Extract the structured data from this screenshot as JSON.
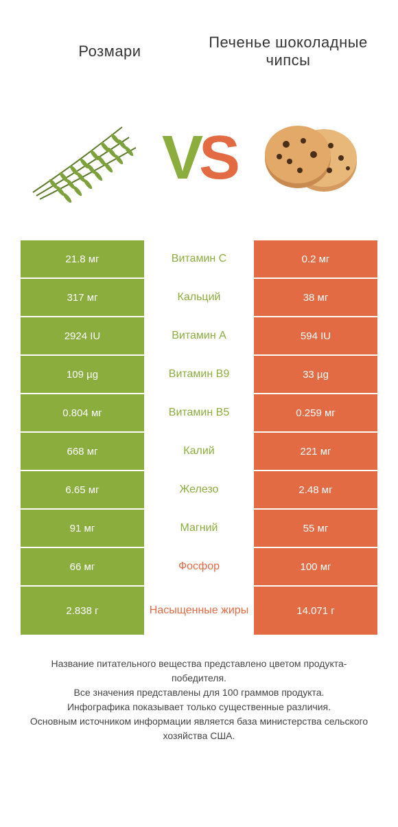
{
  "left_title": "Розмари",
  "right_title": "Печенье шоколадные чипсы",
  "vs": {
    "v": "V",
    "s": "S"
  },
  "colors": {
    "left_cell": "#8aad3e",
    "right_cell": "#e26b44",
    "left_text": "#8aad3e",
    "right_text": "#e26b44",
    "mid_bg": "#ffffff"
  },
  "rows": [
    {
      "left": "21.8 мг",
      "mid": "Витамин C",
      "right": "0.2 мг",
      "winner": "left",
      "tall": false
    },
    {
      "left": "317 мг",
      "mid": "Кальций",
      "right": "38 мг",
      "winner": "left",
      "tall": false
    },
    {
      "left": "2924 IU",
      "mid": "Витамин A",
      "right": "594 IU",
      "winner": "left",
      "tall": false
    },
    {
      "left": "109 µg",
      "mid": "Витамин B9",
      "right": "33 µg",
      "winner": "left",
      "tall": false
    },
    {
      "left": "0.804 мг",
      "mid": "Витамин B5",
      "right": "0.259 мг",
      "winner": "left",
      "tall": false
    },
    {
      "left": "668 мг",
      "mid": "Калий",
      "right": "221 мг",
      "winner": "left",
      "tall": false
    },
    {
      "left": "6.65 мг",
      "mid": "Железо",
      "right": "2.48 мг",
      "winner": "left",
      "tall": false
    },
    {
      "left": "91 мг",
      "mid": "Магний",
      "right": "55 мг",
      "winner": "left",
      "tall": false
    },
    {
      "left": "66 мг",
      "mid": "Фосфор",
      "right": "100 мг",
      "winner": "right",
      "tall": false
    },
    {
      "left": "2.838 г",
      "mid": "Насыщенные жиры",
      "right": "14.071 г",
      "winner": "right",
      "tall": true
    }
  ],
  "footer": [
    "Название питательного вещества представлено цветом продукта-победителя.",
    "Все значения представлены для 100 граммов продукта.",
    "Инфографика показывает только существенные различия.",
    "Основным источником информации является база министерства сельского хозяйства США."
  ]
}
